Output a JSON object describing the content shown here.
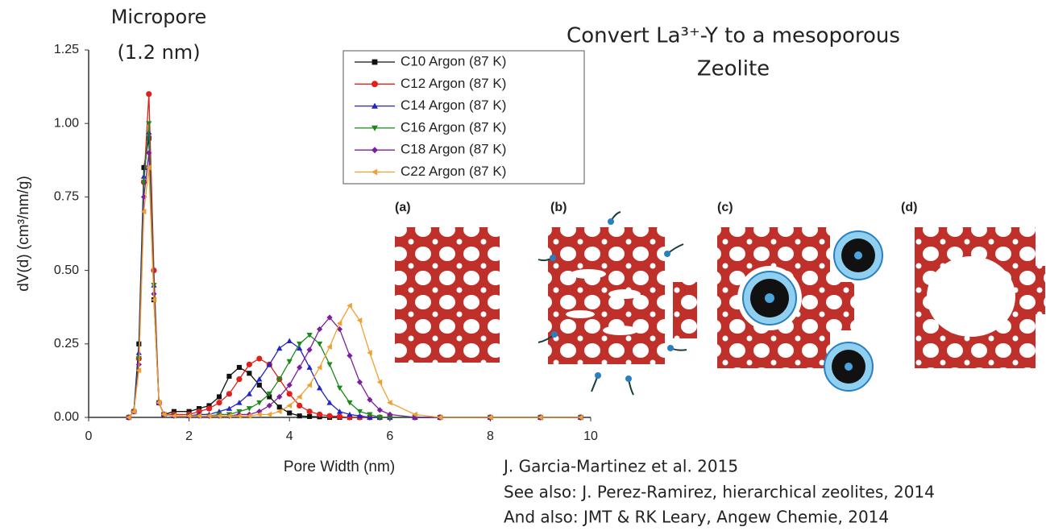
{
  "chart_data": {
    "type": "line",
    "x_label": "Pore Width (nm)",
    "y_label": "dV(d) (cm³/nm/g)",
    "annotation": [
      "Micropore",
      "(1.2 nm)"
    ],
    "x": [
      0.8,
      0.9,
      1.0,
      1.1,
      1.2,
      1.3,
      1.4,
      1.5,
      1.7,
      2.0,
      2.2,
      2.4,
      2.6,
      2.8,
      3.0,
      3.2,
      3.4,
      3.6,
      3.8,
      4.0,
      4.2,
      4.4,
      4.6,
      4.8,
      5.0,
      5.2,
      5.4,
      5.6,
      5.8,
      6.0,
      6.5,
      7.0,
      8.0,
      9.0,
      9.8
    ],
    "series": [
      {
        "name": "C10 Argon (87 K)",
        "color": "#111111",
        "marker": "square",
        "values": [
          0,
          0.02,
          0.25,
          0.85,
          0.95,
          0.4,
          0.05,
          0.01,
          0.02,
          0.02,
          0.03,
          0.04,
          0.07,
          0.14,
          0.17,
          0.15,
          0.11,
          0.07,
          0.035,
          0.015,
          0.005,
          0.003,
          0.002,
          0,
          0,
          0,
          0,
          0,
          0,
          0,
          0,
          0,
          0,
          0,
          0
        ]
      },
      {
        "name": "C12 Argon (87 K)",
        "color": "#e0201b",
        "marker": "circle",
        "values": [
          0,
          0.02,
          0.2,
          0.8,
          1.1,
          0.5,
          0.05,
          0.01,
          0.01,
          0.01,
          0.02,
          0.03,
          0.05,
          0.08,
          0.13,
          0.18,
          0.2,
          0.18,
          0.13,
          0.08,
          0.04,
          0.02,
          0.01,
          0.005,
          0.003,
          0,
          0,
          0,
          0,
          0,
          0,
          0,
          0,
          0,
          0
        ]
      },
      {
        "name": "C14 Argon (87 K)",
        "color": "#2323c8",
        "marker": "triangle-up",
        "values": [
          0,
          0.02,
          0.22,
          0.82,
          0.97,
          0.45,
          0.05,
          0.01,
          0.005,
          0.005,
          0.01,
          0.01,
          0.02,
          0.03,
          0.05,
          0.08,
          0.13,
          0.18,
          0.235,
          0.26,
          0.235,
          0.17,
          0.1,
          0.05,
          0.02,
          0.01,
          0.005,
          0,
          0,
          0,
          0,
          0,
          0,
          0,
          0
        ]
      },
      {
        "name": "C16 Argon (87 K)",
        "color": "#1a8a1a",
        "marker": "triangle-down",
        "values": [
          0,
          0.02,
          0.2,
          0.8,
          1.0,
          0.45,
          0.05,
          0.01,
          0.005,
          0.005,
          0.005,
          0.005,
          0.01,
          0.01,
          0.02,
          0.03,
          0.05,
          0.08,
          0.13,
          0.19,
          0.25,
          0.28,
          0.25,
          0.18,
          0.1,
          0.05,
          0.02,
          0.01,
          0,
          0,
          0,
          0,
          0,
          0,
          0
        ]
      },
      {
        "name": "C18 Argon (87 K)",
        "color": "#7b1fa2",
        "marker": "diamond",
        "values": [
          0,
          0.02,
          0.18,
          0.75,
          0.9,
          0.42,
          0.05,
          0.01,
          0.005,
          0.005,
          0.005,
          0.005,
          0.005,
          0.005,
          0.01,
          0.01,
          0.02,
          0.04,
          0.07,
          0.11,
          0.17,
          0.23,
          0.3,
          0.34,
          0.3,
          0.21,
          0.12,
          0.06,
          0.025,
          0.01,
          0,
          0,
          0,
          0,
          0
        ]
      },
      {
        "name": "C22 Argon (87 K)",
        "color": "#f0a030",
        "marker": "triangle-left",
        "values": [
          0,
          0.02,
          0.16,
          0.7,
          0.85,
          0.4,
          0.05,
          0.01,
          0.005,
          0.005,
          0.005,
          0.005,
          0.005,
          0.005,
          0.005,
          0.005,
          0.01,
          0.01,
          0.02,
          0.04,
          0.07,
          0.11,
          0.17,
          0.24,
          0.32,
          0.38,
          0.33,
          0.22,
          0.12,
          0.05,
          0.01,
          0,
          0,
          0,
          0
        ]
      }
    ],
    "xlim": [
      0,
      10
    ],
    "xticks": [
      0,
      2,
      4,
      6,
      8,
      10
    ],
    "ylim": [
      0,
      1.25
    ],
    "yticks": [
      {
        "value": 0,
        "label": "0.00"
      },
      {
        "value": 0.25,
        "label": "0.25"
      },
      {
        "value": 0.5,
        "label": "0.50"
      },
      {
        "value": 0.75,
        "label": "0.75"
      },
      {
        "value": 1,
        "label": "1.00"
      },
      {
        "value": 1.25,
        "label": "1.25"
      }
    ],
    "grid": false
  },
  "figure": {
    "title": [
      "Convert La³⁺-Y to a mesoporous",
      "Zeolite"
    ],
    "panel_labels": [
      "(a)",
      "(b)",
      "(c)",
      "(d)"
    ],
    "references": [
      "J. Garcia-Martinez et al. 2015",
      "See also: J. Perez-Ramirez, hierarchical zeolites, 2014",
      "And also: JMT & RK Leary, Angew Chemie, 2014"
    ]
  }
}
